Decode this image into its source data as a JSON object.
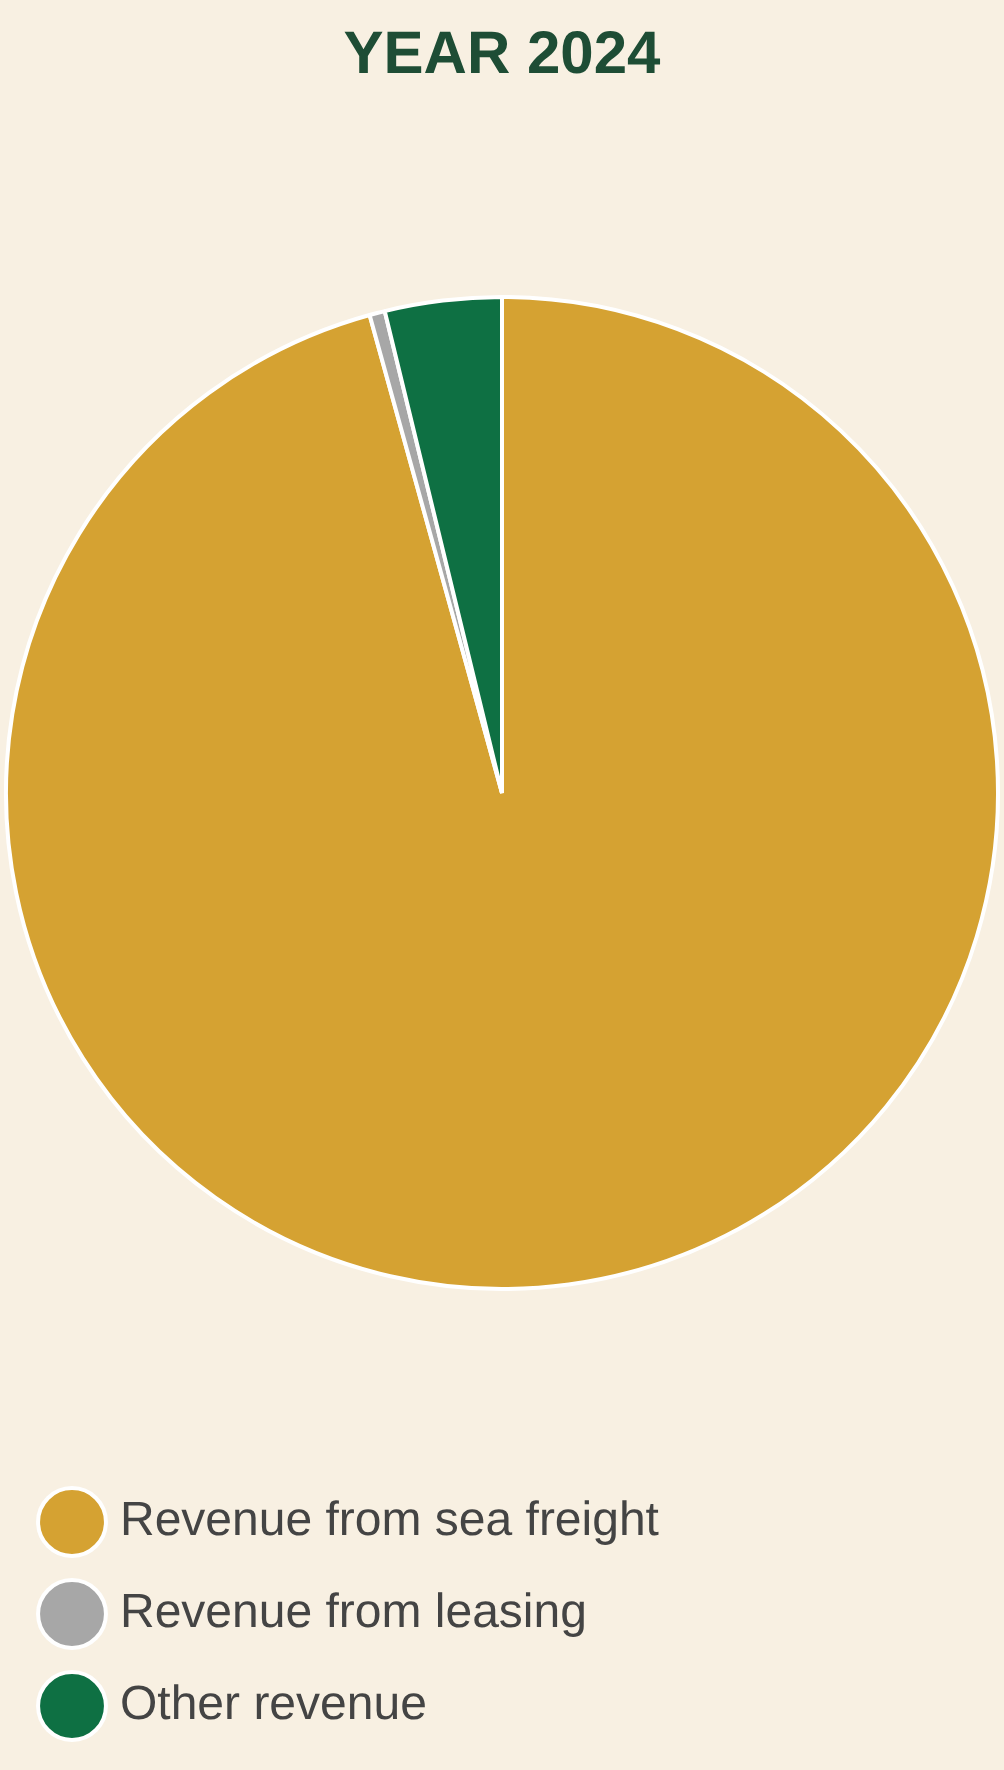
{
  "chart_data": {
    "type": "pie",
    "title": "YEAR 2024",
    "categories": [
      "Revenue from sea freight",
      "Revenue from leasing",
      "Other revenue"
    ],
    "values": [
      95.7,
      0.5,
      3.8
    ],
    "colors": [
      "#d5a232",
      "#a7a7a7",
      "#0e7043"
    ],
    "legend": "bottom"
  }
}
